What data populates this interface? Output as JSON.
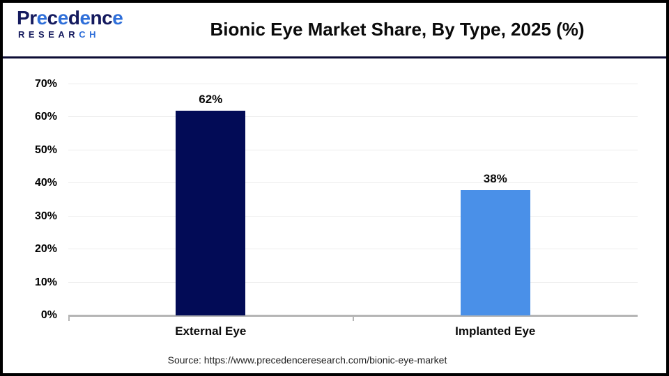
{
  "logo": {
    "line1_segments": [
      {
        "t": "P",
        "c": "#141a5e"
      },
      {
        "t": "r",
        "c": "#141a5e"
      },
      {
        "t": "e",
        "c": "#2f6fd9"
      },
      {
        "t": "c",
        "c": "#141a5e"
      },
      {
        "t": "e",
        "c": "#2f6fd9"
      },
      {
        "t": "d",
        "c": "#141a5e"
      },
      {
        "t": "e",
        "c": "#2f6fd9"
      },
      {
        "t": "n",
        "c": "#141a5e"
      },
      {
        "t": "c",
        "c": "#141a5e"
      },
      {
        "t": "e",
        "c": "#2f6fd9"
      }
    ],
    "line2_segments": [
      {
        "t": "RESEAR",
        "c": "#141a5e"
      },
      {
        "t": "CH",
        "c": "#2f6fd9"
      }
    ]
  },
  "header": {
    "title": "Bionic Eye Market Share, By Type, 2025 (%)"
  },
  "chart_data": {
    "type": "bar",
    "title": "Bionic Eye Market Share, By Type, 2025 (%)",
    "categories": [
      "External Eye",
      "Implanted Eye"
    ],
    "values": [
      62,
      38
    ],
    "value_labels": [
      "62%",
      "38%"
    ],
    "bar_colors": [
      "#020b56",
      "#4a90e8"
    ],
    "xlabel": "",
    "ylabel": "",
    "ylim": [
      0,
      70
    ],
    "ytick_step": 10,
    "ytick_suffix": "%",
    "grid": true,
    "legend": false
  },
  "footer": {
    "source": "Source: https://www.precedenceresearch.com/bionic-eye-market"
  },
  "colors": {
    "navy_bar": "#020b56",
    "blue_bar": "#4a90e8",
    "divider": "#0d0d35",
    "gridline": "#ececec",
    "axis": "#b5b5b5",
    "border": "#000000"
  }
}
